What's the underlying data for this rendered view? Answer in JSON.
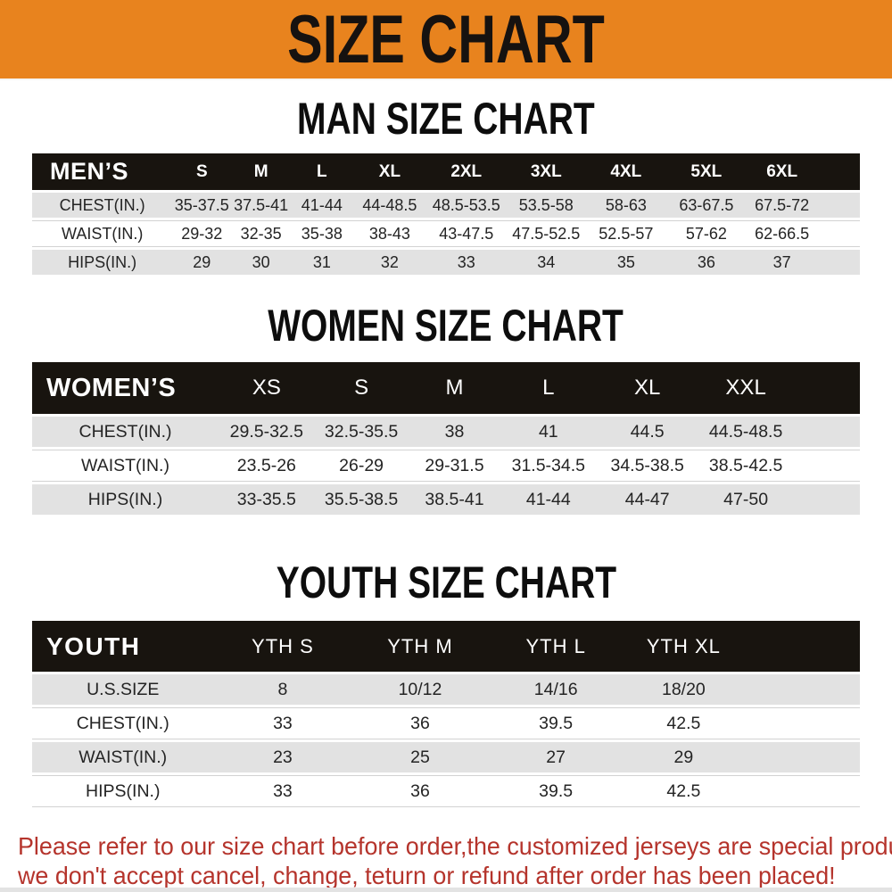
{
  "banner_title": "SIZE CHART",
  "colors": {
    "banner_bg": "#E8831E",
    "header_bar_bg": "#18140F",
    "row_stripe": "#E2E2E2",
    "footer_text": "#B5342C"
  },
  "men": {
    "title": "MAN SIZE CHART",
    "header_label": "MEN’S",
    "columns": [
      "S",
      "M",
      "L",
      "XL",
      "2XL",
      "3XL",
      "4XL",
      "5XL",
      "6XL"
    ],
    "rows": [
      {
        "label": "CHEST(IN.)",
        "values": [
          "35-37.5",
          "37.5-41",
          "41-44",
          "44-48.5",
          "48.5-53.5",
          "53.5-58",
          "58-63",
          "63-67.5",
          "67.5-72"
        ]
      },
      {
        "label": "WAIST(IN.)",
        "values": [
          "29-32",
          "32-35",
          "35-38",
          "38-43",
          "43-47.5",
          "47.5-52.5",
          "52.5-57",
          "57-62",
          "62-66.5"
        ]
      },
      {
        "label": "HIPS(IN.)",
        "values": [
          "29",
          "30",
          "31",
          "32",
          "33",
          "34",
          "35",
          "36",
          "37"
        ]
      }
    ]
  },
  "women": {
    "title": "WOMEN SIZE CHART",
    "header_label": "WOMEN’S",
    "columns": [
      "XS",
      "S",
      "M",
      "L",
      "XL",
      "XXL"
    ],
    "rows": [
      {
        "label": "CHEST(IN.)",
        "values": [
          "29.5-32.5",
          "32.5-35.5",
          "38",
          "41",
          "44.5",
          "44.5-48.5"
        ]
      },
      {
        "label": "WAIST(IN.)",
        "values": [
          "23.5-26",
          "26-29",
          "29-31.5",
          "31.5-34.5",
          "34.5-38.5",
          "38.5-42.5"
        ]
      },
      {
        "label": "HIPS(IN.)",
        "values": [
          "33-35.5",
          "35.5-38.5",
          "38.5-41",
          "41-44",
          "44-47",
          "47-50"
        ]
      }
    ]
  },
  "youth": {
    "title": "YOUTH SIZE CHART",
    "header_label": "YOUTH",
    "columns": [
      "YTH S",
      "YTH M",
      "YTH L",
      "YTH XL"
    ],
    "rows": [
      {
        "label": "U.S.SIZE",
        "values": [
          "8",
          "10/12",
          "14/16",
          "18/20"
        ]
      },
      {
        "label": "CHEST(IN.)",
        "values": [
          "33",
          "36",
          "39.5",
          "42.5"
        ]
      },
      {
        "label": "WAIST(IN.)",
        "values": [
          "23",
          "25",
          "27",
          "29"
        ]
      },
      {
        "label": "HIPS(IN.)",
        "values": [
          "33",
          "36",
          "39.5",
          "42.5"
        ]
      }
    ]
  },
  "footer": {
    "line1": "Please refer to our size chart before order,the customized jerseys are special products,",
    "line2": "we don't accept cancel, change, teturn or refund after order has been placed!"
  }
}
